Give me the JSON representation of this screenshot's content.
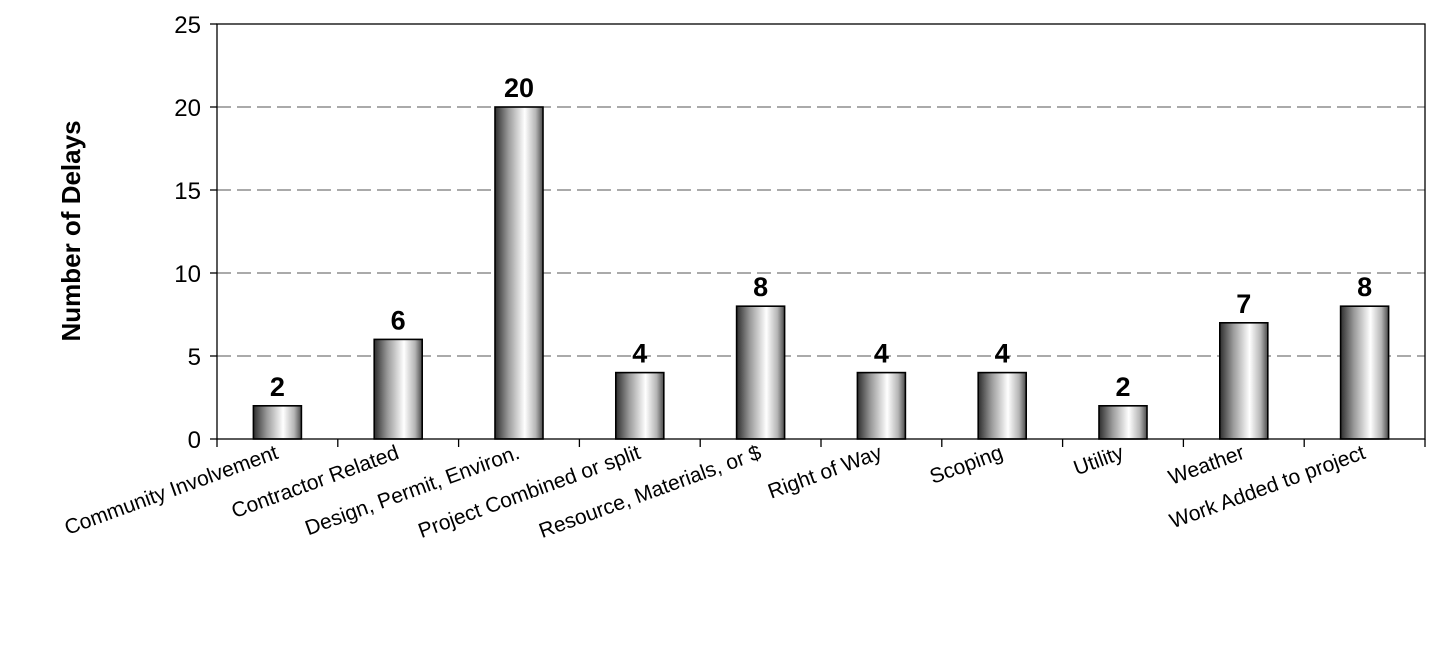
{
  "chart_data": {
    "type": "bar",
    "title": "",
    "xlabel": "",
    "ylabel": "Number of Delays",
    "ylim": [
      0,
      25
    ],
    "yticks": [
      0,
      5,
      10,
      15,
      20,
      25
    ],
    "grid": true,
    "legend": "none",
    "categories": [
      "Community Involvement",
      "Contractor Related",
      "Design, Permit, Environ.",
      "Project Combined or split",
      "Resource, Materials, or $",
      "Right of Way",
      "Scoping",
      "Utility",
      "Weather",
      "Work Added to project"
    ],
    "values": [
      2,
      6,
      20,
      4,
      8,
      4,
      4,
      2,
      7,
      8
    ],
    "bar_style": "cylinder-gradient",
    "bar_colors": {
      "edge": "#3a3a3a",
      "highlight": "#ffffff",
      "outline": "#000000"
    }
  }
}
